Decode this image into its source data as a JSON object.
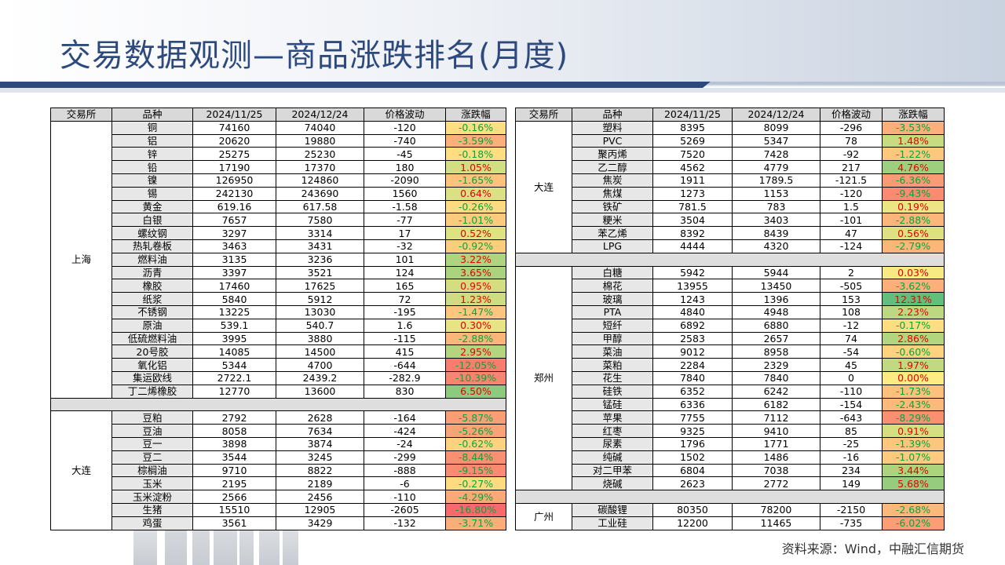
{
  "title": "交易数据观测—商品涨跌排名(月度)",
  "source": "资料来源：Wind，中融汇信期货",
  "headers": [
    "交易所",
    "品种",
    "2024/11/25",
    "2024/12/24",
    "价格波动",
    "涨跌幅"
  ],
  "left_table": [
    {
      "exchange": "上海",
      "rows": [
        [
          "铜",
          "74160",
          "74040",
          "-120",
          "-0.16%"
        ],
        [
          "铝",
          "20620",
          "19880",
          "-740",
          "-3.59%"
        ],
        [
          "锌",
          "25275",
          "25230",
          "-45",
          "-0.18%"
        ],
        [
          "铅",
          "17190",
          "17370",
          "180",
          "1.05%"
        ],
        [
          "镍",
          "126950",
          "124860",
          "-2090",
          "-1.65%"
        ],
        [
          "锡",
          "242130",
          "243690",
          "1560",
          "0.64%"
        ],
        [
          "黄金",
          "619.16",
          "617.58",
          "-1.58",
          "-0.26%"
        ],
        [
          "白银",
          "7657",
          "7580",
          "-77",
          "-1.01%"
        ],
        [
          "螺纹钢",
          "3297",
          "3314",
          "17",
          "0.52%"
        ],
        [
          "热轧卷板",
          "3463",
          "3431",
          "-32",
          "-0.92%"
        ],
        [
          "燃料油",
          "3135",
          "3236",
          "101",
          "3.22%"
        ],
        [
          "沥青",
          "3397",
          "3521",
          "124",
          "3.65%"
        ],
        [
          "橡胶",
          "17460",
          "17625",
          "165",
          "0.95%"
        ],
        [
          "纸浆",
          "5840",
          "5912",
          "72",
          "1.23%"
        ],
        [
          "不锈钢",
          "13225",
          "13030",
          "-195",
          "-1.47%"
        ],
        [
          "原油",
          "539.1",
          "540.7",
          "1.6",
          "0.30%"
        ],
        [
          "低硫燃料油",
          "3995",
          "3880",
          "-115",
          "-2.88%"
        ],
        [
          "20号胶",
          "14085",
          "14500",
          "415",
          "2.95%"
        ],
        [
          "氧化铝",
          "5344",
          "4700",
          "-644",
          "-12.05%"
        ],
        [
          "集运欧线",
          "2722.1",
          "2439.2",
          "-282.9",
          "-10.39%"
        ],
        [
          "丁二烯橡胶",
          "12770",
          "13600",
          "830",
          "6.50%"
        ]
      ]
    },
    {
      "exchange": "大连",
      "rows": [
        [
          "豆粕",
          "2792",
          "2628",
          "-164",
          "-5.87%"
        ],
        [
          "豆油",
          "8058",
          "7634",
          "-424",
          "-5.26%"
        ],
        [
          "豆一",
          "3898",
          "3874",
          "-24",
          "-0.62%"
        ],
        [
          "豆二",
          "3544",
          "3245",
          "-299",
          "-8.44%"
        ],
        [
          "棕榈油",
          "9710",
          "8822",
          "-888",
          "-9.15%"
        ],
        [
          "玉米",
          "2195",
          "2189",
          "-6",
          "-0.27%"
        ],
        [
          "玉米淀粉",
          "2566",
          "2456",
          "-110",
          "-4.29%"
        ],
        [
          "生猪",
          "15510",
          "12905",
          "-2605",
          "-16.80%"
        ],
        [
          "鸡蛋",
          "3561",
          "3429",
          "-132",
          "-3.71%"
        ]
      ]
    }
  ],
  "right_table": [
    {
      "exchange": "大连",
      "rows": [
        [
          "塑料",
          "8395",
          "8099",
          "-296",
          "-3.53%"
        ],
        [
          "PVC",
          "5269",
          "5347",
          "78",
          "1.48%"
        ],
        [
          "聚丙烯",
          "7520",
          "7428",
          "-92",
          "-1.22%"
        ],
        [
          "乙二醇",
          "4562",
          "4779",
          "217",
          "4.76%"
        ],
        [
          "焦炭",
          "1911",
          "1789.5",
          "-121.5",
          "-6.36%"
        ],
        [
          "焦煤",
          "1273",
          "1153",
          "-120",
          "-9.43%"
        ],
        [
          "铁矿",
          "781.5",
          "783",
          "1.5",
          "0.19%"
        ],
        [
          "粳米",
          "3504",
          "3403",
          "-101",
          "-2.88%"
        ],
        [
          "苯乙烯",
          "8392",
          "8439",
          "47",
          "0.56%"
        ],
        [
          "LPG",
          "4444",
          "4320",
          "-124",
          "-2.79%"
        ]
      ]
    },
    {
      "exchange": "郑州",
      "rows": [
        [
          "白糖",
          "5942",
          "5944",
          "2",
          "0.03%"
        ],
        [
          "棉花",
          "13955",
          "13450",
          "-505",
          "-3.62%"
        ],
        [
          "玻璃",
          "1243",
          "1396",
          "153",
          "12.31%"
        ],
        [
          "PTA",
          "4840",
          "4948",
          "108",
          "2.23%"
        ],
        [
          "短纤",
          "6892",
          "6880",
          "-12",
          "-0.17%"
        ],
        [
          "甲醇",
          "2583",
          "2657",
          "74",
          "2.86%"
        ],
        [
          "菜油",
          "9012",
          "8958",
          "-54",
          "-0.60%"
        ],
        [
          "菜粕",
          "2284",
          "2329",
          "45",
          "1.97%"
        ],
        [
          "花生",
          "7840",
          "7840",
          "0",
          "0.00%"
        ],
        [
          "硅铁",
          "6352",
          "6242",
          "-110",
          "-1.73%"
        ],
        [
          "锰硅",
          "6336",
          "6182",
          "-154",
          "-2.43%"
        ],
        [
          "苹果",
          "7755",
          "7112",
          "-643",
          "-8.29%"
        ],
        [
          "红枣",
          "9325",
          "9410",
          "85",
          "0.91%"
        ],
        [
          "尿素",
          "1796",
          "1771",
          "-25",
          "-1.39%"
        ],
        [
          "纯碱",
          "1502",
          "1486",
          "-16",
          "-1.07%"
        ],
        [
          "对二甲苯",
          "6804",
          "7038",
          "234",
          "3.44%"
        ],
        [
          "烧碱",
          "2623",
          "2772",
          "149",
          "5.68%"
        ]
      ]
    },
    {
      "exchange": "广州",
      "rows": [
        [
          "碳酸锂",
          "80350",
          "78200",
          "-2150",
          "-2.68%"
        ],
        [
          "工业硅",
          "12200",
          "11465",
          "-735",
          "-6.02%"
        ]
      ]
    }
  ],
  "colors": {
    "title": "#2e4a7d",
    "positive_text": "#e60000",
    "negative_text": "#00a83c",
    "scale_green": "#63be7b",
    "scale_yellow": "#ffeb84",
    "scale_red": "#f8696b"
  }
}
